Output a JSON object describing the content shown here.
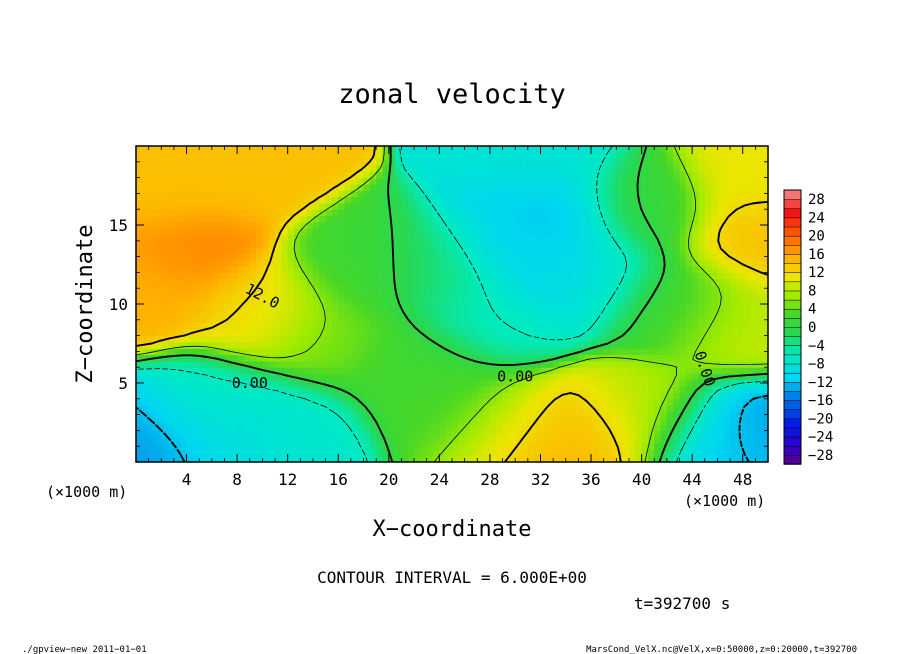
{
  "chart_data": {
    "type": "heatmap",
    "title": "zonal velocity",
    "xlabel": "X−coordinate",
    "ylabel": "Z−coordinate",
    "x_unit": "(×1000 m)",
    "z_unit": "(×1000 m)",
    "xlim": [
      0,
      50
    ],
    "ylim": [
      0,
      20
    ],
    "x_ticks": [
      "4",
      "8",
      "12",
      "16",
      "20",
      "24",
      "28",
      "32",
      "36",
      "40",
      "44",
      "48"
    ],
    "y_ticks": [
      "5",
      "10",
      "15"
    ],
    "colorbar_ticks": [
      "28",
      "24",
      "20",
      "16",
      "12",
      "8",
      "4",
      "0",
      "−4",
      "−8",
      "−12",
      "−16",
      "−20",
      "−24",
      "−28"
    ],
    "colorbar_levels": [
      -30,
      -28,
      -26,
      -24,
      -22,
      -20,
      -18,
      -16,
      -14,
      -12,
      -10,
      -8,
      -6,
      -4,
      -2,
      0,
      2,
      4,
      6,
      8,
      10,
      12,
      14,
      16,
      18,
      20,
      22,
      24,
      26,
      28,
      30
    ],
    "contour_labels": [
      "12.0",
      "0.00",
      "0.00",
      "0.00"
    ],
    "contour_interval_text": "CONTOUR INTERVAL = 6.000E+00",
    "time_text": "t=392700 s",
    "grid": false,
    "legend": "colorbar-right",
    "features": [
      {
        "x": 4,
        "z": 13.5,
        "value": 18
      },
      {
        "x": 2,
        "z": 17,
        "value": 14
      },
      {
        "x": 8,
        "z": 18.5,
        "value": 14
      },
      {
        "x": 10,
        "z": 9.5,
        "value": 12
      },
      {
        "x": 1,
        "z": 11,
        "value": 15
      },
      {
        "x": 30,
        "z": 14,
        "value": -10
      },
      {
        "x": 33,
        "z": 15.5,
        "value": -13
      },
      {
        "x": 33,
        "z": 12.5,
        "value": -12
      },
      {
        "x": 28,
        "z": 9,
        "value": -6
      },
      {
        "x": 36,
        "z": 12,
        "value": -7
      },
      {
        "x": 32,
        "z": 19,
        "value": -8
      },
      {
        "x": 24,
        "z": 12,
        "value": -3
      },
      {
        "x": 2,
        "z": 1.5,
        "value": -14
      },
      {
        "x": 8,
        "z": 1.5,
        "value": -10
      },
      {
        "x": 12,
        "z": 2,
        "value": -7
      },
      {
        "x": 6,
        "z": 3.5,
        "value": -6
      },
      {
        "x": 33,
        "z": 1.2,
        "value": 16
      },
      {
        "x": 36,
        "z": 1.5,
        "value": 14
      },
      {
        "x": 30,
        "z": 2.2,
        "value": 9
      },
      {
        "x": 40,
        "z": 3,
        "value": 8
      },
      {
        "x": 48,
        "z": 1.5,
        "value": -14
      },
      {
        "x": 46,
        "z": 0.8,
        "value": -10
      },
      {
        "x": 49,
        "z": 14,
        "value": 14
      },
      {
        "x": 47,
        "z": 9,
        "value": 9
      },
      {
        "x": 49,
        "z": 18,
        "value": 11
      },
      {
        "x": 22,
        "z": 6,
        "value": 2
      },
      {
        "x": 18,
        "z": 12,
        "value": 2
      },
      {
        "x": 15,
        "z": 8,
        "value": 5
      },
      {
        "x": 43,
        "z": 10,
        "value": 1
      },
      {
        "x": 40,
        "z": 16,
        "value": 1
      },
      {
        "x": 25,
        "z": 4,
        "value": 3
      }
    ]
  },
  "footer": {
    "left": "./gpview−new   2011−01−01",
    "right": "MarsCond_VelX.nc@VelX,x=0:50000,z=0:20000,t=392700"
  }
}
